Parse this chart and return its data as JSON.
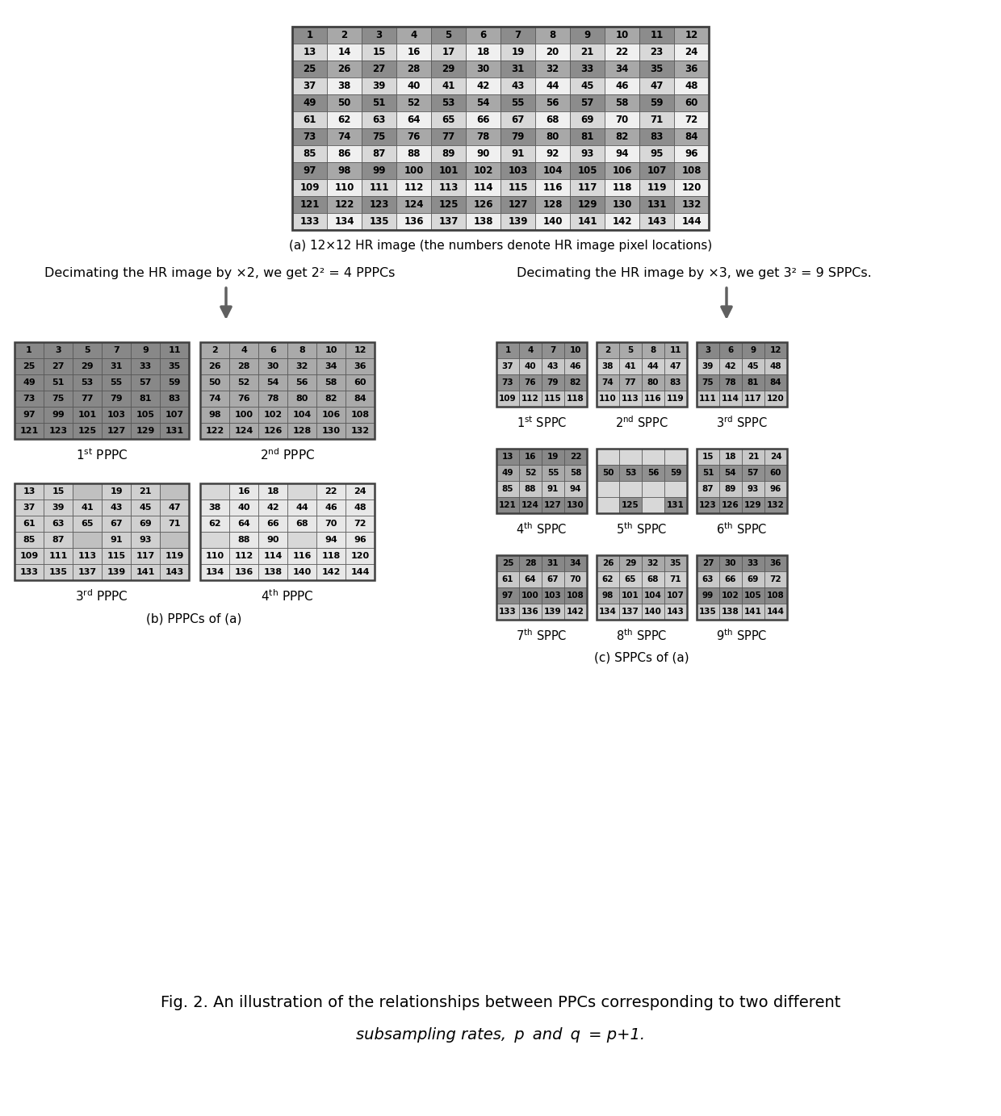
{
  "title_a": "(a) 12×12 HR image (the numbers denote HR image pixel locations)",
  "title_b": "(b) PPPCs of (a)",
  "title_c": "(c) SPPCs of (a)",
  "fig_caption_line1": "Fig. 2. An illustration of the relationships between PPCs corresponding to two different",
  "fig_caption_line2": "subsampling rates,  p  and  q  = p+1.",
  "text_decimate2": "Decimating the HR image by ×2, we get 2² = 4 PPPCs",
  "text_decimate3": "Decimating the HR image by ×3, we get 3² = 9 SPPCs.",
  "bg_color": "#ffffff"
}
